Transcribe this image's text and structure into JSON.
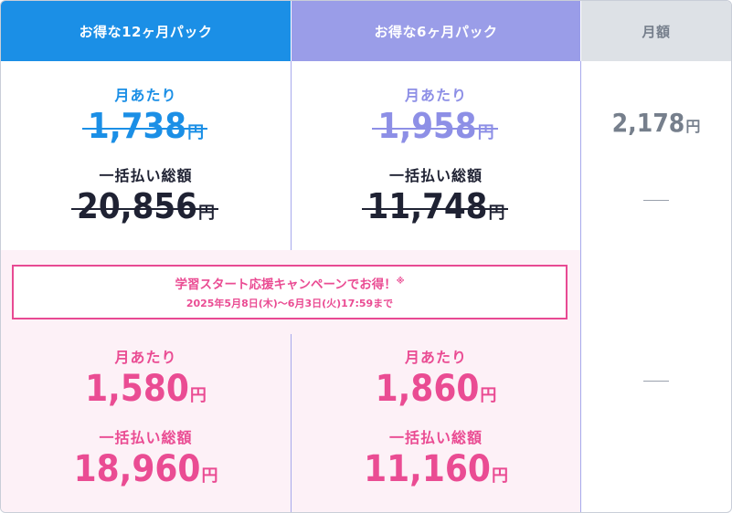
{
  "header": {
    "pack12": "お得な12ヶ月パック",
    "pack6": "お得な6ヶ月パック",
    "monthly": "月額"
  },
  "regular": {
    "pack12": {
      "per_month_label": "月あたり",
      "per_month": "1,738",
      "total_label": "一括払い総額",
      "total": "20,856",
      "yen": "円"
    },
    "pack6": {
      "per_month_label": "月あたり",
      "per_month": "1,958",
      "total_label": "一括払い総額",
      "total": "11,748",
      "yen": "円"
    },
    "monthly": {
      "price": "2,178",
      "yen": "円",
      "total_dash": "—"
    }
  },
  "campaign": {
    "title": "学習スタート応援キャンペーンでお得！",
    "note_mark": "※",
    "period": "2025年5月8日(木)〜6月3日(火)17:59まで"
  },
  "campaign_prices": {
    "pack12": {
      "per_month_label": "月あたり",
      "per_month": "1,580",
      "total_label": "一括払い総額",
      "total": "18,960",
      "yen": "円"
    },
    "pack6": {
      "per_month_label": "月あたり",
      "per_month": "1,860",
      "total_label": "一括払い総額",
      "total": "11,160",
      "yen": "円"
    },
    "monthly_dash": "—"
  },
  "colors": {
    "pack12": "#1b8fe6",
    "pack6": "#9a9de8",
    "monthly_header": "#dde1e6",
    "campaign_pink": "#ea4c93",
    "campaign_bg": "#fdf1f7"
  }
}
